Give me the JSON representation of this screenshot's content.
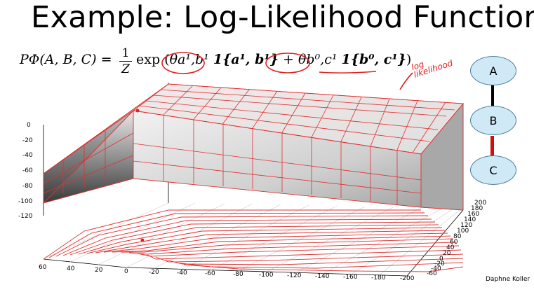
{
  "slide": {
    "title": "Example: Log-Likelihood Function",
    "formula": {
      "lhs": "PΦ(A, B, C) =",
      "frac_num": "1",
      "frac_den": "Z",
      "rhs_exp": "exp (",
      "theta1": "θa¹,b¹",
      "ind1": "1{a¹, b¹}",
      "plus": " + ",
      "theta2": "θb⁰,c¹",
      "ind2": "1{b⁰, c¹}",
      "close": ")"
    },
    "annotation": [
      "log",
      "likelihood"
    ],
    "credit": "Daphne Koller"
  },
  "graph": {
    "nodes": [
      "A",
      "B",
      "C"
    ],
    "node_color": "#cfe9f7",
    "edge_color_top": "#000000",
    "edge_color_bottom": "#d01010"
  },
  "plot": {
    "z_ticks": [
      "0",
      "-20",
      "-40",
      "-60",
      "-80",
      "-100",
      "-120"
    ],
    "x_ticks": [
      "60",
      "40",
      "20",
      "0",
      "-20",
      "-40",
      "-60",
      "-80",
      "-100",
      "-120",
      "-140",
      "-160",
      "-180",
      "-200"
    ],
    "y_ticks": [
      "200",
      "180",
      "160",
      "140",
      "120",
      "100",
      "80",
      "60",
      "40",
      "20",
      "0",
      "-20",
      "-40",
      "-60"
    ],
    "mesh_color": "#e03030"
  }
}
